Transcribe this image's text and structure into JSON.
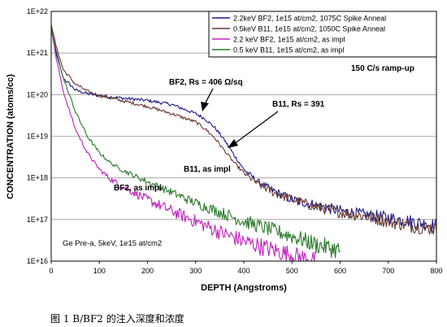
{
  "chart_data": {
    "type": "line",
    "title": "",
    "xlabel": "DEPTH (Angstroms)",
    "ylabel": "CONCENTRATION (atoms/cc)",
    "xlim": [
      0,
      800
    ],
    "ylim": [
      1e+16,
      1e+22
    ],
    "yscale": "log",
    "xticks": [
      0,
      100,
      200,
      300,
      400,
      500,
      600,
      700,
      800
    ],
    "yticks": [
      "1E+16",
      "1E+17",
      "1E+18",
      "1E+19",
      "1E+20",
      "1E+21",
      "1E+22"
    ],
    "grid": true,
    "legend_position": "top-right",
    "series": [
      {
        "name": "2.2keV BF2, 1e15 at/cm2, 1075C Spike Anneal",
        "color": "#1a1a8c",
        "x": [
          0,
          10,
          25,
          50,
          75,
          100,
          150,
          200,
          250,
          300,
          320,
          340,
          360,
          380,
          400,
          430,
          460,
          500,
          550,
          600,
          650,
          700,
          750,
          800
        ],
        "y": [
          4e+21,
          1e+21,
          2.5e+20,
          1.3e+20,
          1.05e+20,
          9.5e+19,
          8.2e+19,
          7.2e+19,
          5.8e+19,
          3.5e+19,
          2.6e+19,
          1.6e+19,
          8e+18,
          3.5e+18,
          1.6e+18,
          8e+17,
          5e+17,
          3e+17,
          2.2e+17,
          1.6e+17,
          1.3e+17,
          1.1e+17,
          9e+16,
          7e+16
        ]
      },
      {
        "name": "0.5keV B11, 1e15 at/cm2, 1050C Spike Anneal",
        "color": "#6b3a2e",
        "x": [
          0,
          10,
          25,
          50,
          75,
          100,
          150,
          200,
          250,
          300,
          320,
          340,
          360,
          380,
          400,
          430,
          460,
          500,
          550,
          600,
          650,
          700,
          750,
          800
        ],
        "y": [
          5e+21,
          1.5e+21,
          4e+20,
          1.8e+20,
          1.2e+20,
          9.5e+19,
          7e+19,
          5.2e+19,
          3.5e+19,
          2.2e+19,
          1.5e+19,
          9e+18,
          4.5e+18,
          2.3e+18,
          1.3e+18,
          7e+17,
          4.5e+17,
          3e+17,
          2e+17,
          1.5e+17,
          1.2e+17,
          9e+16,
          7e+16,
          6e+16
        ]
      },
      {
        "name": "2.2 keV BF2, 1e15 at/cm2, as impl",
        "color": "#c020c0",
        "x": [
          0,
          10,
          25,
          50,
          75,
          100,
          125,
          150,
          200,
          250,
          300,
          350,
          400,
          450,
          500,
          550
        ],
        "y": [
          4e+21,
          8e+20,
          1.2e+20,
          1.5e+19,
          4e+18,
          1.6e+18,
          9e+17,
          6e+17,
          3e+17,
          1.6e+17,
          9e+16,
          5e+16,
          3e+16,
          2e+16,
          1.4e+16,
          1e+16
        ]
      },
      {
        "name": "0.5 keV B11, 1e15 at/cm2, as impl",
        "color": "#2a7a2a",
        "x": [
          0,
          10,
          25,
          50,
          75,
          100,
          125,
          150,
          200,
          250,
          300,
          350,
          400,
          450,
          500,
          550,
          600
        ],
        "y": [
          4e+21,
          1.2e+21,
          2.5e+20,
          4e+19,
          1e+19,
          4e+18,
          2.2e+18,
          1.5e+18,
          8e+17,
          4.5e+17,
          2.5e+17,
          1.5e+17,
          9e+16,
          6e+16,
          4e+16,
          2.5e+16,
          1.8e+16
        ]
      }
    ],
    "annotations": {
      "ramp": "150 C/s ramp-up",
      "bf2_rs": "BF2, Rs = 406 Ω/sq",
      "b11_rs": "B11, Rs = 391",
      "b11_impl": "B11, as impl",
      "bf2_impl": "BF2, as impl",
      "pre": "Ge Pre-a, 5keV, 1e15 at/cm2"
    }
  },
  "caption": "图 1 B/BF2 的注入深度和浓度"
}
